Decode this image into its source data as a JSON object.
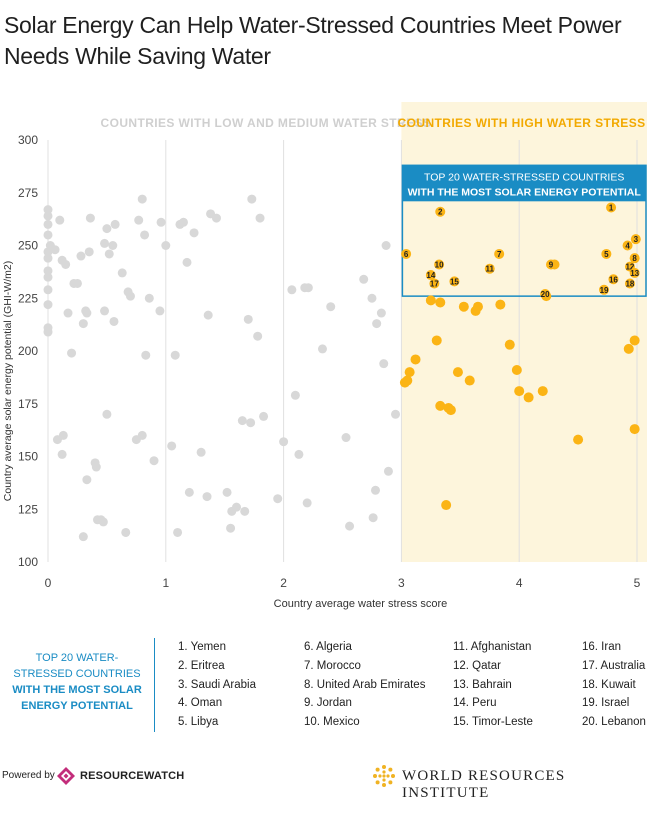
{
  "title": "Solar Energy Can Help Water-Stressed Countries Meet Power Needs While Saving Water",
  "chart_data": {
    "type": "scatter",
    "xlabel": "Country average water stress score",
    "ylabel": "Country average solar energy potential (GHI-W/m2)",
    "xlim": [
      0,
      5
    ],
    "ylim": [
      100,
      300
    ],
    "x_ticks": [
      "0",
      "1",
      "2",
      "3",
      "4",
      "5"
    ],
    "y_ticks": [
      "100",
      "125",
      "150",
      "175",
      "200",
      "225",
      "250",
      "275",
      "300"
    ],
    "grid": "vertical",
    "region_labels": {
      "low": "COUNTRIES WITH LOW AND MEDIUM WATER STRESS",
      "high": "COUNTRIES WITH HIGH WATER STRESS"
    },
    "callout": {
      "line1": "TOP 20 WATER-STRESSED COUNTRIES",
      "line2": "WITH THE MOST SOLAR ENERGY POTENTIAL"
    },
    "colors": {
      "low_points": "#d8d8d8",
      "high_points": "#fbb415",
      "high_band": "#fdf5dc",
      "callout": "#1a8cc4",
      "grid": "#e0e0e0"
    },
    "low_stress_points": [
      [
        0.0,
        267
      ],
      [
        0.0,
        264
      ],
      [
        0.0,
        260
      ],
      [
        0.0,
        255
      ],
      [
        0.0,
        247
      ],
      [
        0.0,
        244
      ],
      [
        0.0,
        238
      ],
      [
        0.0,
        235
      ],
      [
        0.0,
        229
      ],
      [
        0.0,
        222
      ],
      [
        0.0,
        211
      ],
      [
        0.0,
        209
      ],
      [
        0.02,
        250
      ],
      [
        0.06,
        248
      ],
      [
        0.08,
        158
      ],
      [
        0.1,
        262
      ],
      [
        0.12,
        243
      ],
      [
        0.12,
        151
      ],
      [
        0.13,
        160
      ],
      [
        0.15,
        241
      ],
      [
        0.17,
        218
      ],
      [
        0.2,
        199
      ],
      [
        0.22,
        232
      ],
      [
        0.25,
        232
      ],
      [
        0.28,
        245
      ],
      [
        0.3,
        213
      ],
      [
        0.3,
        112
      ],
      [
        0.32,
        219
      ],
      [
        0.33,
        139
      ],
      [
        0.33,
        218
      ],
      [
        0.35,
        247
      ],
      [
        0.36,
        263
      ],
      [
        0.4,
        147
      ],
      [
        0.41,
        145
      ],
      [
        0.42,
        120
      ],
      [
        0.45,
        120
      ],
      [
        0.47,
        119
      ],
      [
        0.5,
        258
      ],
      [
        0.48,
        251
      ],
      [
        0.48,
        219
      ],
      [
        0.5,
        170
      ],
      [
        0.52,
        246
      ],
      [
        0.55,
        250
      ],
      [
        0.56,
        214
      ],
      [
        0.57,
        260
      ],
      [
        0.63,
        237
      ],
      [
        0.66,
        114
      ],
      [
        0.68,
        228
      ],
      [
        0.7,
        226
      ],
      [
        0.75,
        158
      ],
      [
        0.77,
        262
      ],
      [
        0.8,
        160
      ],
      [
        0.8,
        272
      ],
      [
        0.82,
        255
      ],
      [
        0.83,
        198
      ],
      [
        0.86,
        225
      ],
      [
        0.9,
        148
      ],
      [
        0.95,
        219
      ],
      [
        0.96,
        261
      ],
      [
        1.0,
        250
      ],
      [
        1.05,
        155
      ],
      [
        1.08,
        198
      ],
      [
        1.1,
        114
      ],
      [
        1.12,
        260
      ],
      [
        1.15,
        261
      ],
      [
        1.18,
        242
      ],
      [
        1.2,
        133
      ],
      [
        1.24,
        256
      ],
      [
        1.3,
        152
      ],
      [
        1.35,
        131
      ],
      [
        1.36,
        217
      ],
      [
        1.38,
        265
      ],
      [
        1.43,
        263
      ],
      [
        1.52,
        133
      ],
      [
        1.55,
        116
      ],
      [
        1.56,
        124
      ],
      [
        1.6,
        126
      ],
      [
        1.65,
        167
      ],
      [
        1.67,
        124
      ],
      [
        1.7,
        215
      ],
      [
        1.72,
        166
      ],
      [
        1.73,
        272
      ],
      [
        1.78,
        207
      ],
      [
        1.8,
        263
      ],
      [
        1.83,
        169
      ],
      [
        1.95,
        130
      ],
      [
        2.0,
        157
      ],
      [
        2.07,
        229
      ],
      [
        2.1,
        179
      ],
      [
        2.13,
        151
      ],
      [
        2.18,
        230
      ],
      [
        2.2,
        128
      ],
      [
        2.21,
        230
      ],
      [
        2.33,
        201
      ],
      [
        2.4,
        221
      ],
      [
        2.53,
        159
      ],
      [
        2.56,
        117
      ],
      [
        2.68,
        234
      ],
      [
        2.75,
        225
      ],
      [
        2.76,
        121
      ],
      [
        2.78,
        134
      ],
      [
        2.79,
        213
      ],
      [
        2.83,
        218
      ],
      [
        2.85,
        194
      ],
      [
        2.87,
        250
      ],
      [
        2.89,
        143
      ],
      [
        2.95,
        170
      ]
    ],
    "high_stress_points": [
      [
        3.03,
        185
      ],
      [
        3.05,
        186
      ],
      [
        3.07,
        190
      ],
      [
        3.12,
        196
      ],
      [
        3.25,
        224
      ],
      [
        3.3,
        205
      ],
      [
        3.33,
        223
      ],
      [
        3.33,
        174
      ],
      [
        3.38,
        127
      ],
      [
        3.4,
        173
      ],
      [
        3.42,
        172
      ],
      [
        3.48,
        190
      ],
      [
        3.53,
        221
      ],
      [
        3.58,
        186
      ],
      [
        3.65,
        221
      ],
      [
        3.63,
        219
      ],
      [
        3.84,
        222
      ],
      [
        3.92,
        203
      ],
      [
        3.98,
        191
      ],
      [
        4.0,
        181
      ],
      [
        4.08,
        178
      ],
      [
        4.2,
        181
      ],
      [
        4.23,
        226
      ],
      [
        4.3,
        241
      ],
      [
        4.5,
        158
      ],
      [
        4.93,
        201
      ],
      [
        4.98,
        205
      ],
      [
        4.98,
        163
      ]
    ],
    "top20_points": [
      {
        "rank": "1",
        "x": 4.78,
        "y": 268
      },
      {
        "rank": "2",
        "x": 3.33,
        "y": 266
      },
      {
        "rank": "3",
        "x": 4.99,
        "y": 253
      },
      {
        "rank": "4",
        "x": 4.92,
        "y": 250
      },
      {
        "rank": "5",
        "x": 4.74,
        "y": 246
      },
      {
        "rank": "6",
        "x": 3.04,
        "y": 246
      },
      {
        "rank": "7",
        "x": 3.83,
        "y": 246
      },
      {
        "rank": "8",
        "x": 4.98,
        "y": 244
      },
      {
        "rank": "9",
        "x": 4.27,
        "y": 241
      },
      {
        "rank": "10",
        "x": 3.32,
        "y": 241
      },
      {
        "rank": "11",
        "x": 3.75,
        "y": 239
      },
      {
        "rank": "12",
        "x": 4.94,
        "y": 240
      },
      {
        "rank": "13",
        "x": 4.98,
        "y": 237
      },
      {
        "rank": "14",
        "x": 3.25,
        "y": 236
      },
      {
        "rank": "15",
        "x": 3.45,
        "y": 233
      },
      {
        "rank": "16",
        "x": 4.8,
        "y": 234
      },
      {
        "rank": "17",
        "x": 3.28,
        "y": 232
      },
      {
        "rank": "18",
        "x": 4.94,
        "y": 232
      },
      {
        "rank": "19",
        "x": 4.72,
        "y": 229
      },
      {
        "rank": "20",
        "x": 4.22,
        "y": 227
      }
    ]
  },
  "legend": {
    "title_line1": "TOP 20 WATER-STRESSED COUNTRIES",
    "title_line2": "WITH THE MOST SOLAR ENERGY POTENTIAL",
    "countries": [
      "1. Yemen",
      "2. Eritrea",
      "3. Saudi Arabia",
      "4. Oman",
      "5. Libya",
      "6. Algeria",
      "7. Morocco",
      "8. United Arab Emirates",
      "9. Jordan",
      "10. Mexico",
      "11. Afghanistan",
      "12. Qatar",
      "13. Bahrain",
      "14. Peru",
      "15. Timor-Leste",
      "16. Iran",
      "17. Australia",
      "18. Kuwait",
      "19. Israel",
      "20. Lebanon"
    ]
  },
  "footer": {
    "powered_by": "Powered by",
    "resourcewatch": "RESOURCEWATCH",
    "wri": "WORLD RESOURCES INSTITUTE"
  }
}
